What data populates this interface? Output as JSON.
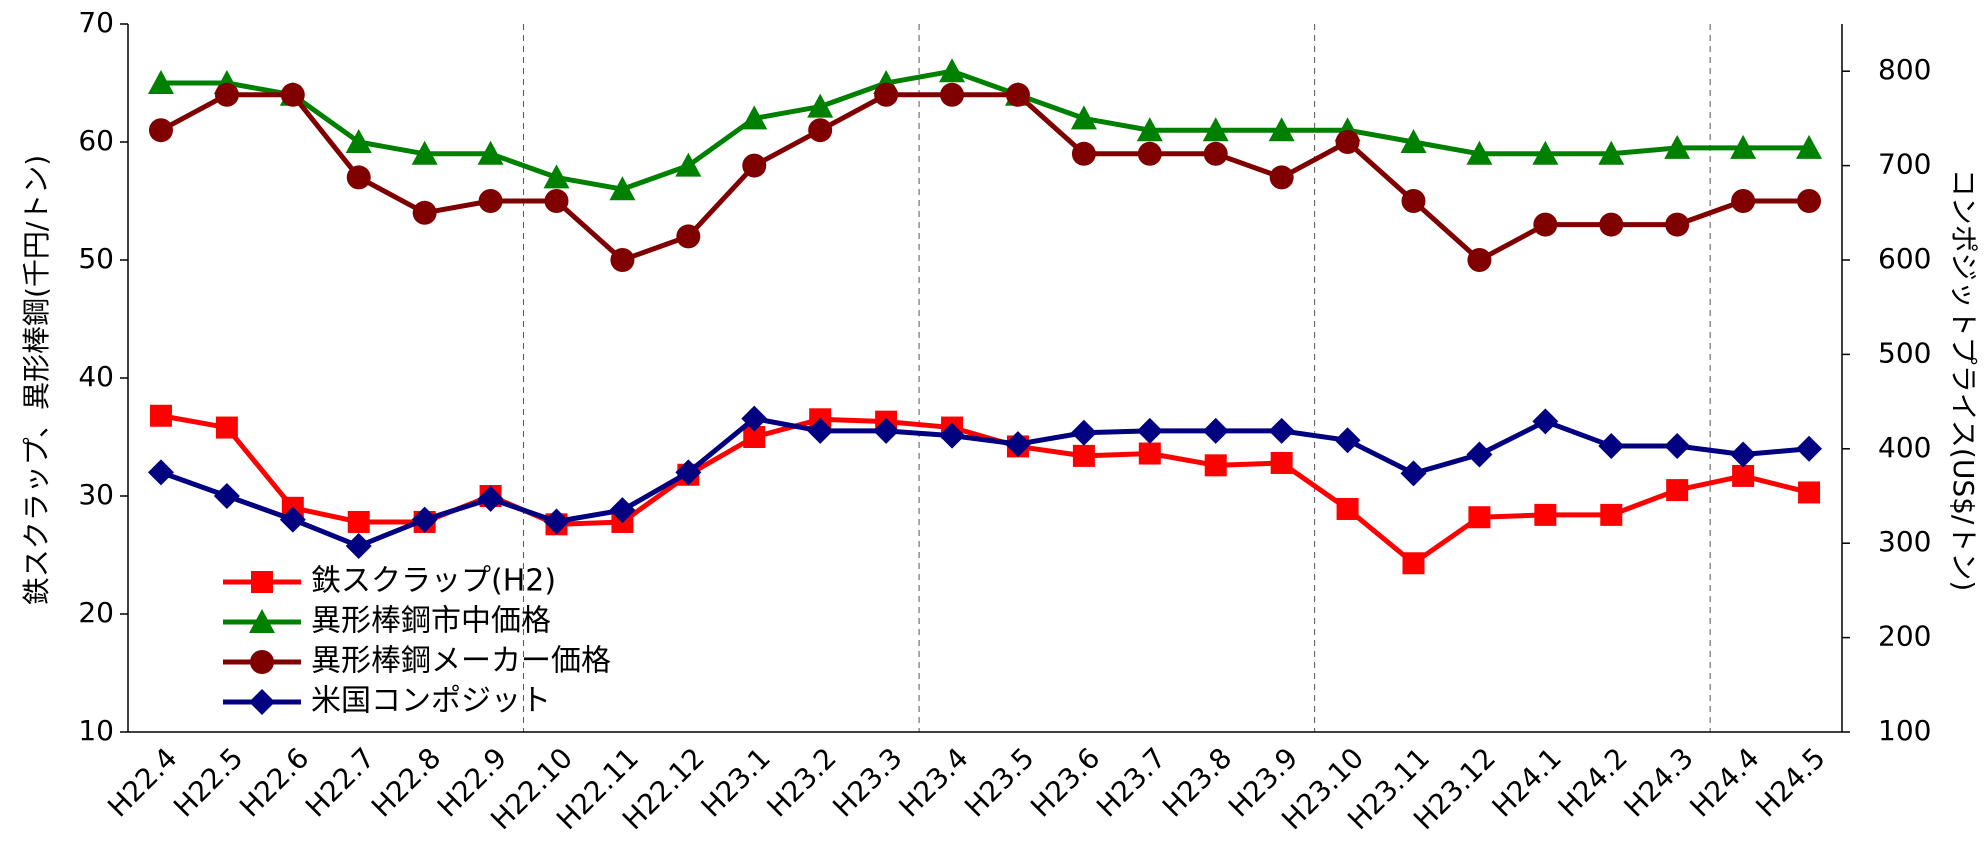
{
  "chart_data": {
    "type": "line",
    "categories": [
      "H22.4",
      "H22.5",
      "H22.6",
      "H22.7",
      "H22.8",
      "H22.9",
      "H22.10",
      "H22.11",
      "H22.12",
      "H23.1",
      "H23.2",
      "H23.3",
      "H23.4",
      "H23.5",
      "H23.6",
      "H23.7",
      "H23.8",
      "H23.9",
      "H23.10",
      "H23.11",
      "H23.12",
      "H24.1",
      "H24.2",
      "H24.3",
      "H24.4",
      "H24.5"
    ],
    "y_label": "鉄スクラップ、異形棒鋼(千円/トン)",
    "y2_label": "コンポジットプライス(US$/トン)",
    "ylim": [
      10,
      70
    ],
    "yticks": [
      10,
      20,
      30,
      40,
      50,
      60,
      70
    ],
    "y2lim": [
      100,
      850
    ],
    "y2ticks": [
      100,
      200,
      300,
      400,
      500,
      600,
      700,
      800
    ],
    "x_grid_every": 6,
    "legend": "lower left",
    "series": [
      {
        "name": "鉄スクラップ(H2)",
        "color": "#ff0000",
        "marker": "square",
        "values": [
          36.8,
          35.8,
          29,
          27.8,
          27.8,
          30,
          27.6,
          27.8,
          31.8,
          35,
          36.5,
          36.3,
          35.8,
          34.2,
          33.4,
          33.6,
          32.6,
          32.8,
          28.9,
          24.3,
          28.2,
          28.4,
          28.4,
          30.5,
          31.7,
          30.3
        ]
      },
      {
        "name": "異形棒鋼市中価格",
        "color": "#008000",
        "marker": "triangle",
        "values": [
          65,
          65,
          64,
          60,
          59,
          59,
          57,
          56,
          58,
          62,
          63,
          65,
          66,
          64,
          62,
          61,
          61,
          61,
          61,
          60,
          59,
          59,
          59,
          59.5,
          59.5,
          59.5
        ]
      },
      {
        "name": "異形棒鋼メーカー価格",
        "color": "#800000",
        "marker": "circle",
        "values": [
          61,
          64,
          64,
          57,
          54,
          55,
          55,
          50,
          52,
          58,
          61,
          64,
          64,
          64,
          59,
          59,
          59,
          57,
          60,
          55,
          50,
          53,
          53,
          53,
          55,
          55
        ]
      },
      {
        "name": "米国コンポジット",
        "color": "#000080",
        "marker": "diamond",
        "axis": "y2",
        "values": [
          375,
          350,
          325,
          297,
          325,
          347,
          323,
          335,
          375,
          432,
          419,
          419,
          414,
          405,
          417,
          419,
          419,
          419,
          409,
          374,
          394,
          429,
          403,
          403,
          394,
          400
        ]
      }
    ]
  }
}
